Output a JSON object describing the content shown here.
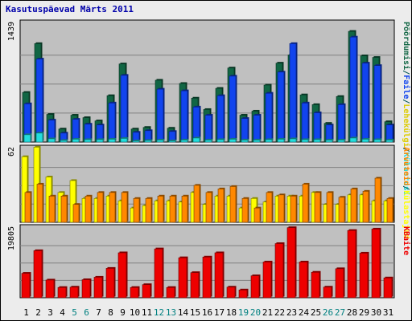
{
  "title": "Kasutuspäevad Märts 2011",
  "chart_data": [
    {
      "type": "bar",
      "panel": "top",
      "ymax_label": "1439",
      "ylim": [
        0,
        1439
      ],
      "grid": true,
      "categories": [
        "1",
        "2",
        "3",
        "4",
        "5",
        "6",
        "7",
        "8",
        "9",
        "10",
        "11",
        "12",
        "13",
        "14",
        "15",
        "16",
        "17",
        "18",
        "19",
        "20",
        "21",
        "22",
        "23",
        "24",
        "25",
        "26",
        "27",
        "28",
        "29",
        "30",
        "31"
      ],
      "series": [
        {
          "name": "Külastused",
          "color": "#22dddd",
          "values": [
            90,
            110,
            40,
            20,
            35,
            30,
            30,
            35,
            45,
            15,
            20,
            25,
            15,
            25,
            50,
            25,
            30,
            35,
            25,
            25,
            30,
            35,
            40,
            30,
            30,
            25,
            25,
            50,
            35,
            30,
            25
          ]
        },
        {
          "name": "Leheküljed",
          "color": "#116644",
          "values": [
            610,
            1210,
            340,
            160,
            330,
            300,
            260,
            570,
            960,
            160,
            180,
            760,
            170,
            720,
            540,
            400,
            660,
            910,
            330,
            380,
            700,
            970,
            1070,
            580,
            460,
            230,
            560,
            1360,
            1060,
            1040,
            250
          ]
        },
        {
          "name": "Failid",
          "color": "#1144ee",
          "values": [
            470,
            1020,
            270,
            110,
            280,
            220,
            210,
            480,
            820,
            120,
            140,
            650,
            130,
            630,
            430,
            330,
            570,
            810,
            290,
            330,
            600,
            860,
            1210,
            480,
            360,
            210,
            460,
            1290,
            970,
            940,
            210
          ]
        }
      ],
      "right_labels": [
        "Pöördumisi",
        "/",
        "Faile",
        "/",
        "Lehekülgi",
        "/",
        "Külastusi"
      ],
      "right_colors": [
        "#116644",
        "#005555",
        "#1144ee",
        "#005555",
        "#ddcc00",
        "#005555",
        "#22dddd"
      ]
    },
    {
      "type": "bar",
      "panel": "middle",
      "ymax_label": "62",
      "ylim": [
        0,
        62
      ],
      "grid": true,
      "categories": [
        "1",
        "2",
        "3",
        "4",
        "5",
        "6",
        "7",
        "8",
        "9",
        "10",
        "11",
        "12",
        "13",
        "14",
        "15",
        "16",
        "17",
        "18",
        "19",
        "20",
        "21",
        "22",
        "23",
        "24",
        "25",
        "26",
        "27",
        "28",
        "29",
        "30",
        "31"
      ],
      "series": [
        {
          "name": "Külastajad",
          "color": "#ffff00",
          "values": [
            55,
            63,
            38,
            25,
            35,
            20,
            20,
            22,
            18,
            12,
            14,
            18,
            18,
            17,
            25,
            15,
            22,
            22,
            12,
            20,
            17,
            22,
            22,
            22,
            25,
            15,
            15,
            23,
            23,
            18,
            18
          ]
        },
        {
          "name": "Arvuteid",
          "color": "#ff8800",
          "values": [
            25,
            32,
            22,
            22,
            15,
            22,
            25,
            25,
            25,
            20,
            20,
            22,
            22,
            22,
            31,
            25,
            28,
            30,
            20,
            12,
            25,
            23,
            22,
            32,
            25,
            25,
            21,
            28,
            26,
            37,
            20
          ]
        }
      ],
      "right_labels": [
        "Arvuteid",
        "/",
        "Külastajad"
      ],
      "right_colors": [
        "#ff8800",
        "#005555",
        "#ffff00"
      ]
    },
    {
      "type": "bar",
      "panel": "bottom",
      "ymax_label": "19805",
      "ylim": [
        0,
        19805
      ],
      "grid": true,
      "categories": [
        "1",
        "2",
        "3",
        "4",
        "5",
        "6",
        "7",
        "8",
        "9",
        "10",
        "11",
        "12",
        "13",
        "14",
        "15",
        "16",
        "17",
        "18",
        "19",
        "20",
        "21",
        "22",
        "23",
        "24",
        "25",
        "26",
        "27",
        "28",
        "29",
        "30",
        "31"
      ],
      "series": [
        {
          "name": "KBaite",
          "color": "#ee0000",
          "values": [
            6900,
            13300,
            5000,
            2900,
            3000,
            5100,
            5800,
            8300,
            12700,
            2900,
            3700,
            13800,
            2900,
            11300,
            7100,
            11500,
            12700,
            3000,
            2200,
            6200,
            10100,
            15300,
            19800,
            10100,
            7200,
            3000,
            8200,
            19000,
            12600,
            19400,
            5600
          ]
        }
      ],
      "right_labels": [
        "KBaite"
      ],
      "right_colors": [
        "#ee0000"
      ]
    }
  ],
  "weekend_days": [
    "5",
    "6",
    "12",
    "13",
    "19",
    "20",
    "26",
    "27"
  ]
}
